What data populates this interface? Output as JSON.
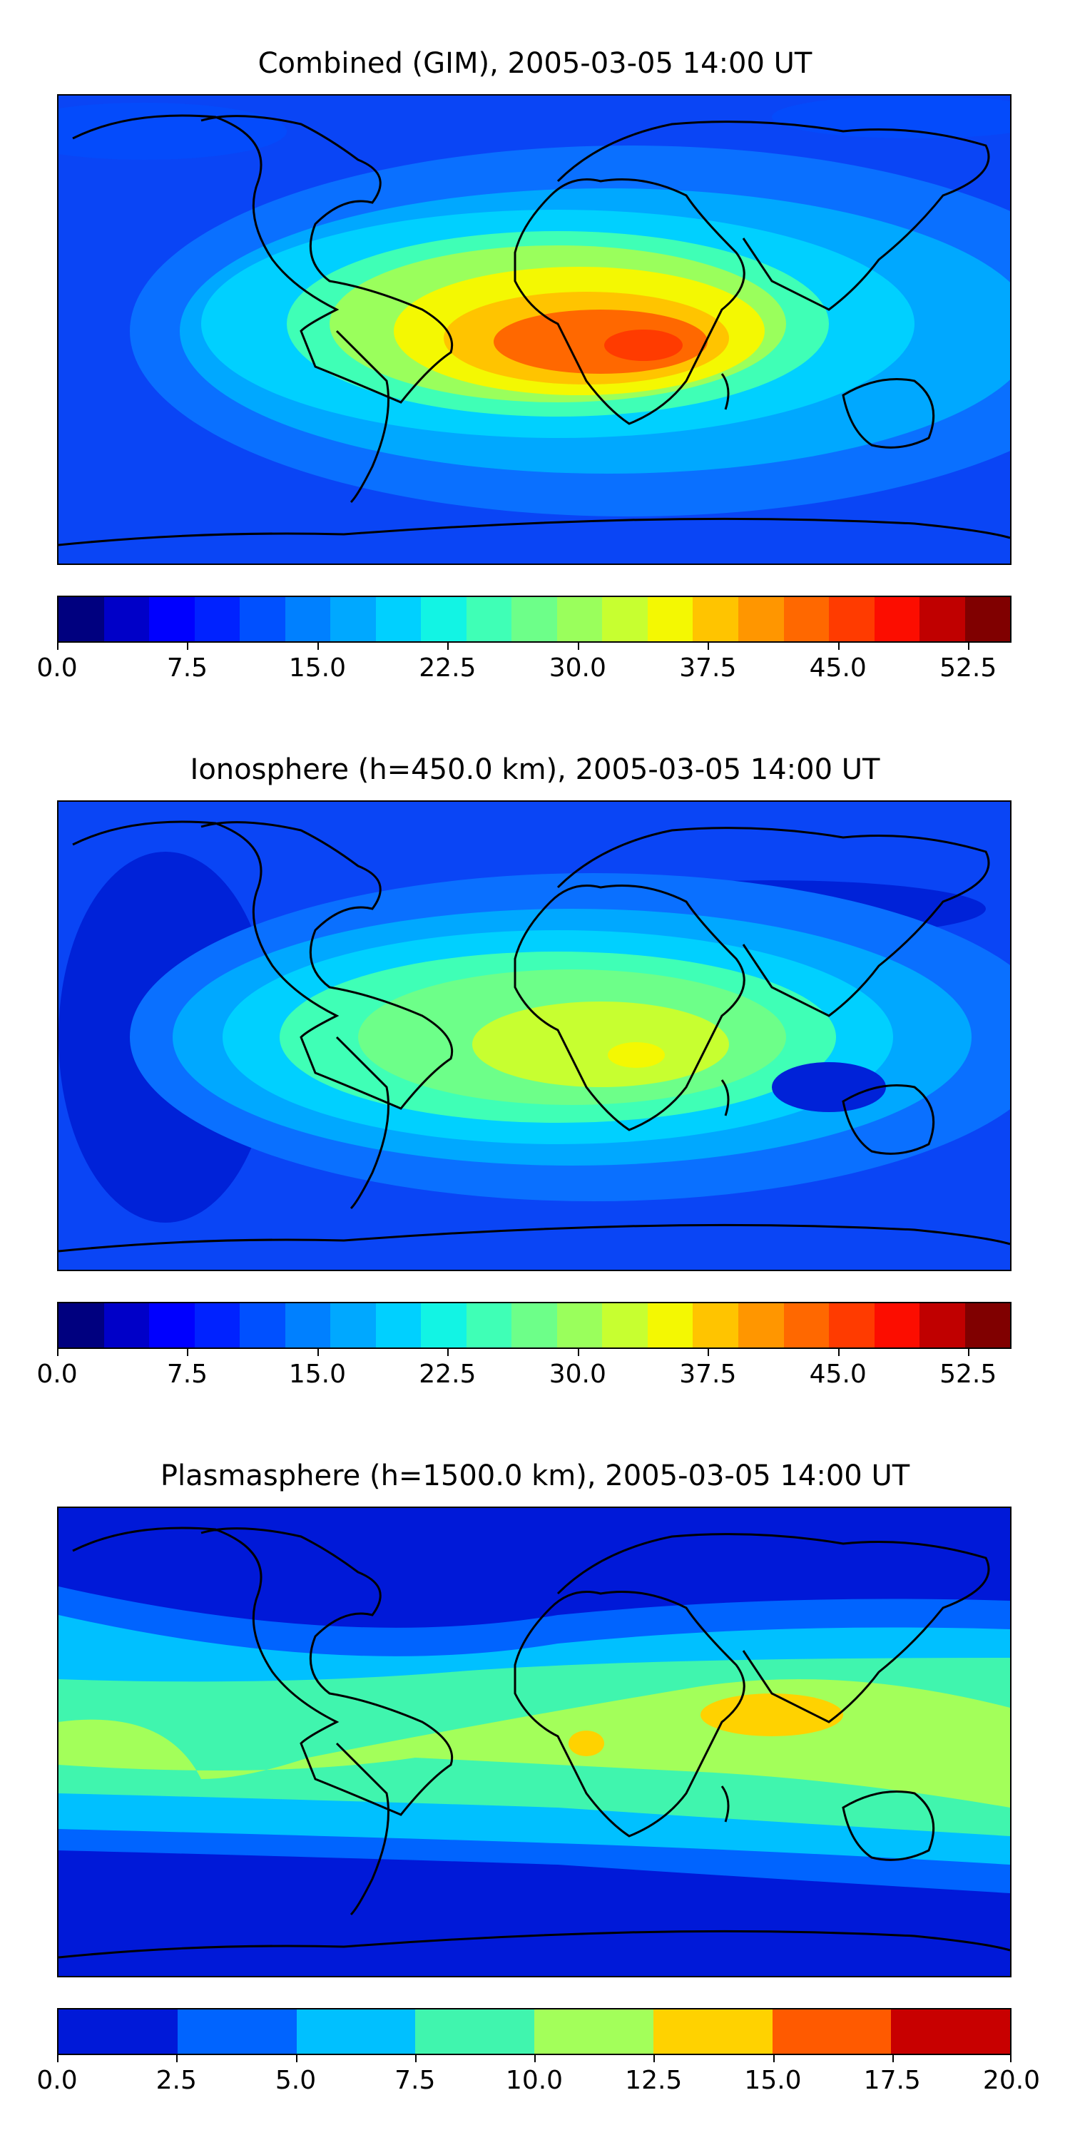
{
  "panels": [
    {
      "title": "Combined (GIM), 2005-03-05 14:00 UT",
      "colorbar": {
        "colors": [
          "#00007f",
          "#0000c8",
          "#0000ff",
          "#0022ff",
          "#0050ff",
          "#0080ff",
          "#00a8ff",
          "#00d0ff",
          "#12f4e4",
          "#3fffb6",
          "#6dff89",
          "#9aff5c",
          "#c7ff30",
          "#f4f802",
          "#ffc400",
          "#ff9600",
          "#ff6800",
          "#ff3b00",
          "#fc0d00",
          "#c00000",
          "#800000"
        ],
        "tick_labels": [
          "0.0",
          "7.5",
          "15.0",
          "22.5",
          "30.0",
          "37.5",
          "45.0",
          "52.5"
        ],
        "tick_values": [
          0,
          7.5,
          15,
          22.5,
          30,
          37.5,
          45,
          52.5
        ],
        "range": [
          0,
          55
        ]
      }
    },
    {
      "title": "Ionosphere  (h=450.0 km), 2005-03-05 14:00 UT",
      "colorbar": {
        "colors": [
          "#00007f",
          "#0000c8",
          "#0000ff",
          "#0022ff",
          "#0050ff",
          "#0080ff",
          "#00a8ff",
          "#00d0ff",
          "#12f4e4",
          "#3fffb6",
          "#6dff89",
          "#9aff5c",
          "#c7ff30",
          "#f4f802",
          "#ffc400",
          "#ff9600",
          "#ff6800",
          "#ff3b00",
          "#fc0d00",
          "#c00000",
          "#800000"
        ],
        "tick_labels": [
          "0.0",
          "7.5",
          "15.0",
          "22.5",
          "30.0",
          "37.5",
          "45.0",
          "52.5"
        ],
        "tick_values": [
          0,
          7.5,
          15,
          22.5,
          30,
          37.5,
          45,
          52.5
        ],
        "range": [
          0,
          55
        ]
      }
    },
    {
      "title": "Plasmasphere (h=1500.0 km), 2005-03-05 14:00 UT",
      "colorbar": {
        "colors": [
          "#0019d8",
          "#0064ff",
          "#00c0ff",
          "#40f5ae",
          "#a3ff5a",
          "#ffd200",
          "#ff5a00",
          "#c80000"
        ],
        "tick_labels": [
          "0.0",
          "2.5",
          "5.0",
          "7.5",
          "10.0",
          "12.5",
          "15.0",
          "17.5",
          "20.0"
        ],
        "tick_values": [
          0,
          2.5,
          5,
          7.5,
          10,
          12.5,
          15,
          17.5,
          20
        ],
        "range": [
          0,
          20
        ]
      }
    }
  ]
}
